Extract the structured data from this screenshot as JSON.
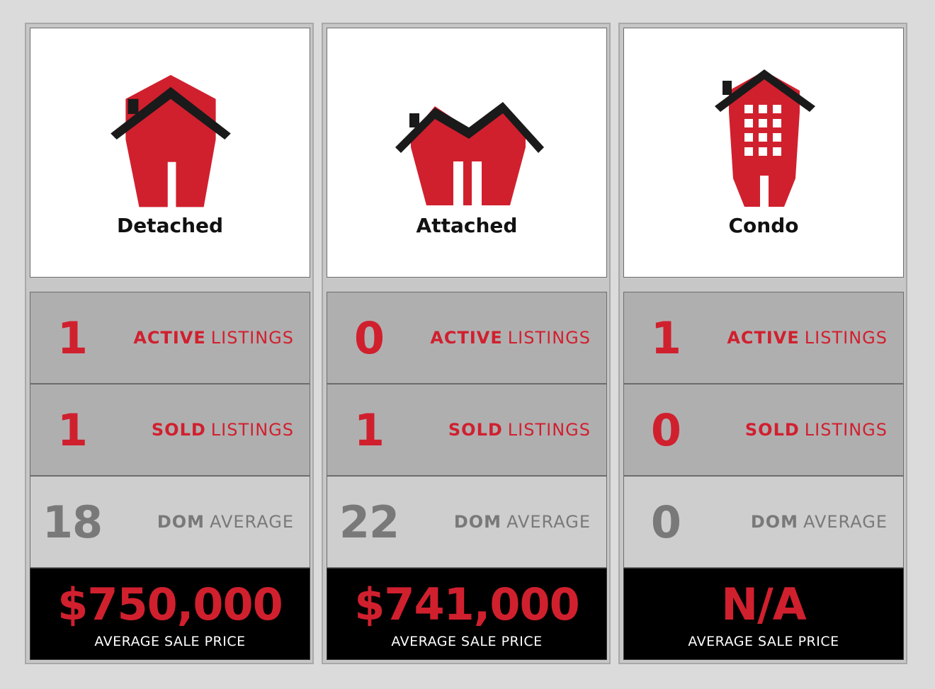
{
  "colors": {
    "accent_red": "#d0202e",
    "roof_black": "#1a1a1a",
    "muted_grey": "#7a797a",
    "page_background": "#dcdbdc"
  },
  "cards": [
    {
      "type_label": "Detached",
      "icon": "detached-house-icon",
      "active": {
        "value": "1",
        "label_bold": "ACTIVE",
        "label_rest": "LISTINGS"
      },
      "sold": {
        "value": "1",
        "label_bold": "SOLD",
        "label_rest": "LISTINGS"
      },
      "dom": {
        "value": "18",
        "label_bold": "DOM",
        "label_rest": "AVERAGE"
      },
      "price": {
        "value": "$750,000",
        "label": "AVERAGE SALE PRICE"
      }
    },
    {
      "type_label": "Attached",
      "icon": "attached-house-icon",
      "active": {
        "value": "0",
        "label_bold": "ACTIVE",
        "label_rest": "LISTINGS"
      },
      "sold": {
        "value": "1",
        "label_bold": "SOLD",
        "label_rest": "LISTINGS"
      },
      "dom": {
        "value": "22",
        "label_bold": "DOM",
        "label_rest": "AVERAGE"
      },
      "price": {
        "value": "$741,000",
        "label": "AVERAGE SALE PRICE"
      }
    },
    {
      "type_label": "Condo",
      "icon": "condo-building-icon",
      "active": {
        "value": "1",
        "label_bold": "ACTIVE",
        "label_rest": "LISTINGS"
      },
      "sold": {
        "value": "0",
        "label_bold": "SOLD",
        "label_rest": "LISTINGS"
      },
      "dom": {
        "value": "0",
        "label_bold": "DOM",
        "label_rest": "AVERAGE"
      },
      "price": {
        "value": "N/A",
        "label": "AVERAGE SALE PRICE"
      }
    }
  ]
}
